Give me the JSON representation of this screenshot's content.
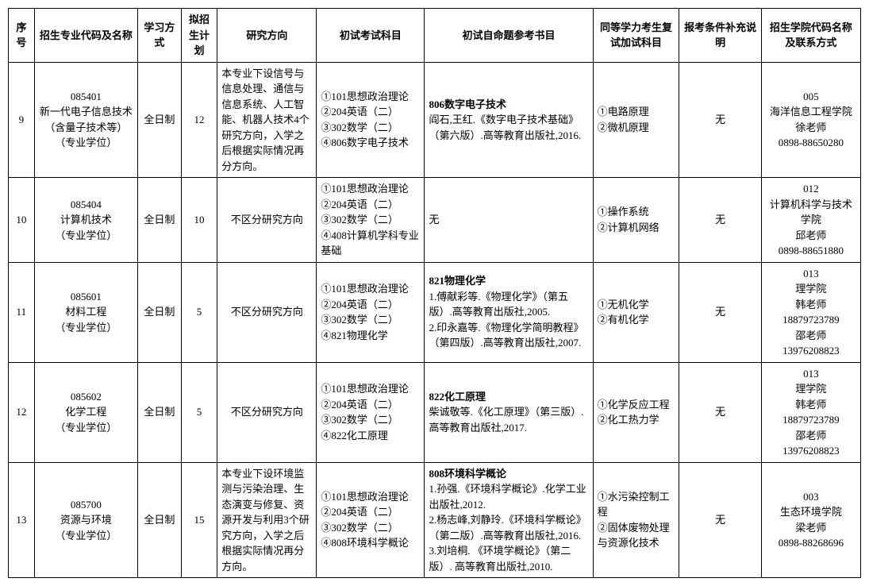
{
  "headers": [
    "序号",
    "招生专业代码及名称",
    "学习方式",
    "拟招生计划",
    "研究方向",
    "初试考试科目",
    "初试自命题参考书目",
    "同等学力考生复试加试科目",
    "报考条件补充说明",
    "招生学院代码名称及联系方式"
  ],
  "rows": [
    {
      "num": "9",
      "major": "085401\n新一代电子信息技术（含量子技术等）\n（专业学位）",
      "mode": "全日制",
      "plan": "12",
      "direction": "本专业下设信号与信息处理、通信与信息系统、人工智能、机器人技术4个研究方向，入学之后根据实际情况再分方向。",
      "exam": "①101思想政治理论\n②204英语（二）\n③302数学（二）\n④806数字电子技术",
      "ref_bold": "806数字电子技术",
      "ref_text": "阎石,王红.《数字电子技术基础》（第六版）.高等教育出版社,2016.",
      "retest": "①电路原理\n②微机原理",
      "extra": "无",
      "contact": "005\n海洋信息工程学院\n徐老师\n0898-88650280"
    },
    {
      "num": "10",
      "major": "085404\n计算机技术\n（专业学位）",
      "mode": "全日制",
      "plan": "10",
      "direction": "不区分研究方向",
      "exam": "①101思想政治理论\n②204英语（二）\n③302数学（二）\n④408计算机学科专业基础",
      "ref_bold": "",
      "ref_text": "无",
      "retest": "①操作系统\n②计算机网络",
      "extra": "无",
      "contact": "012\n计算机科学与技术学院\n邱老师\n0898-88651880"
    },
    {
      "num": "11",
      "major": "085601\n材料工程\n（专业学位）",
      "mode": "全日制",
      "plan": "5",
      "direction": "不区分研究方向",
      "exam": "①101思想政治理论\n②204英语（二）\n③302数学（二）\n④821物理化学",
      "ref_bold": "821物理化学",
      "ref_text": "1.傅献彩等.《物理化学》（第五版）.高等教育出版社,2005.\n2.印永嘉等.《物理化学简明教程》（第四版）.高等教育出版社,2007.",
      "retest": "①无机化学\n②有机化学",
      "extra": "无",
      "contact": "013\n理学院\n韩老师\n18879723789\n邵老师\n13976208823"
    },
    {
      "num": "12",
      "major": "085602\n化学工程\n（专业学位）",
      "mode": "全日制",
      "plan": "5",
      "direction": "不区分研究方向",
      "exam": "①101思想政治理论\n②204英语（二）\n③302数学（二）\n④822化工原理",
      "ref_bold": "822化工原理",
      "ref_text": "柴诚敬等.《化工原理》（第三版）.高等教育出版社,2017.",
      "retest": "①化学反应工程\n②化工热力学",
      "extra": "无",
      "contact": "013\n理学院\n韩老师\n18879723789\n邵老师\n13976208823"
    },
    {
      "num": "13",
      "major": "085700\n资源与环境\n（专业学位）",
      "mode": "全日制",
      "plan": "15",
      "direction": "本专业下设环境监测与污染治理、生态演变与修复、资源开发与利用3个研究方向，入学之后根据实际情况再分方向。",
      "exam": "①101思想政治理论\n②204英语（二）\n③302数学（二）\n④808环境科学概论",
      "ref_bold": "808环境科学概论",
      "ref_text": "1.孙强.《环境科学概论》.化学工业出版社,2012.\n2.杨志峰,刘静玲.《环境科学概论》（第二版）.高等教育出版社,2016.\n3.刘培桐. 《环境学概论》（第二版）. 高等教育出版社,2010.",
      "retest": "①水污染控制工程\n②固体废物处理与资源化技术",
      "extra": "无",
      "contact": "003\n生态环境学院\n梁老师\n0898-88268696"
    }
  ]
}
